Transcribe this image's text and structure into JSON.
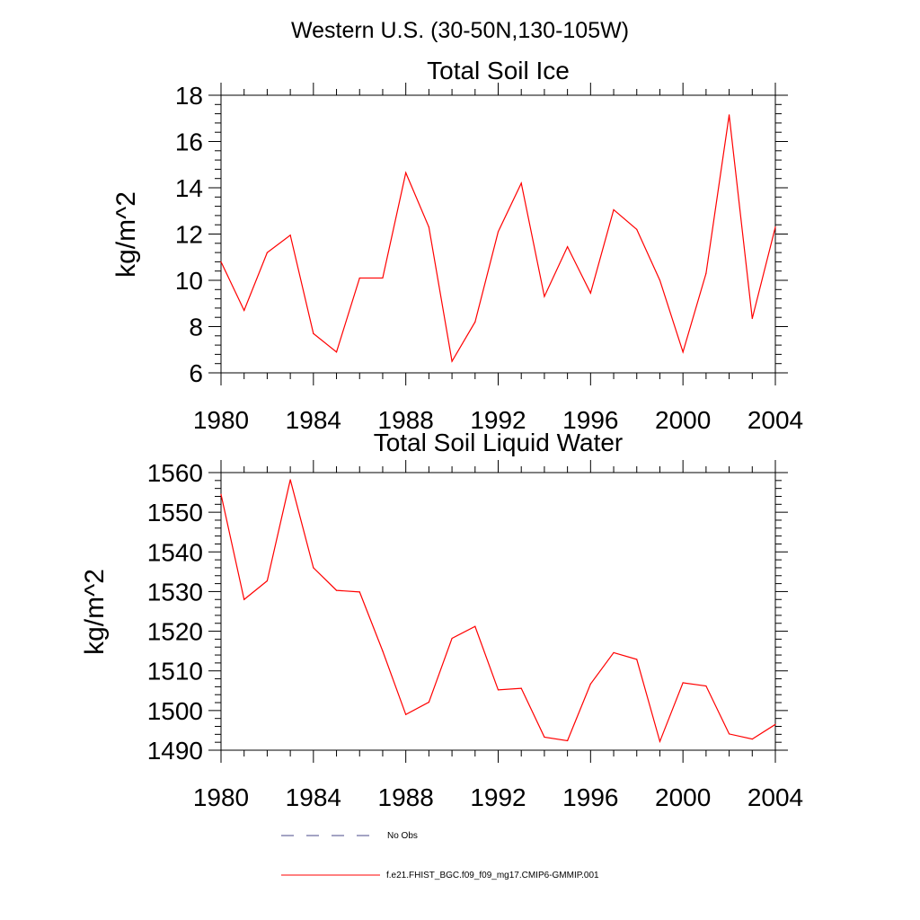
{
  "figure_title": "Western U.S. (30-50N,130-105W)",
  "chart_data": [
    {
      "type": "line",
      "title": "Total Soil Ice",
      "xlabel": "",
      "ylabel": "kg/m^2",
      "xlim": [
        1980,
        2004
      ],
      "ylim": [
        6,
        18
      ],
      "x_ticks": [
        1980,
        1984,
        1988,
        1992,
        1996,
        2000,
        2004
      ],
      "y_ticks": [
        6,
        8,
        10,
        12,
        14,
        16,
        18
      ],
      "grid": false,
      "x": [
        1980,
        1981,
        1982,
        1983,
        1984,
        1985,
        1986,
        1987,
        1988,
        1989,
        1990,
        1991,
        1992,
        1993,
        1994,
        1995,
        1996,
        1997,
        1998,
        1999,
        2000,
        2001,
        2002,
        2003,
        2004
      ],
      "series": [
        {
          "name": "f.e21.FHIST_BGC.f09_f09_mg17.CMIP6-GMMIP.001",
          "color": "#ff0000",
          "values": [
            10.8,
            8.7,
            11.2,
            11.95,
            7.7,
            6.9,
            10.1,
            10.1,
            14.65,
            12.3,
            6.5,
            8.2,
            12.1,
            14.2,
            9.3,
            11.45,
            9.45,
            13.05,
            12.2,
            10.0,
            6.9,
            10.3,
            17.15,
            8.35,
            12.3
          ]
        }
      ]
    },
    {
      "type": "line",
      "title": "Total Soil Liquid Water",
      "xlabel": "",
      "ylabel": "kg/m^2",
      "xlim": [
        1980,
        2004
      ],
      "ylim": [
        1490,
        1560
      ],
      "x_ticks": [
        1980,
        1984,
        1988,
        1992,
        1996,
        2000,
        2004
      ],
      "y_ticks": [
        1490,
        1500,
        1510,
        1520,
        1530,
        1540,
        1550,
        1560
      ],
      "grid": false,
      "x": [
        1980,
        1981,
        1982,
        1983,
        1984,
        1985,
        1986,
        1987,
        1988,
        1989,
        1990,
        1991,
        1992,
        1993,
        1994,
        1995,
        1996,
        1997,
        1998,
        1999,
        2000,
        2001,
        2002,
        2003,
        2004
      ],
      "series": [
        {
          "name": "f.e21.FHIST_BGC.f09_f09_mg17.CMIP6-GMMIP.001",
          "color": "#ff0000",
          "values": [
            1554.5,
            1528.0,
            1532.7,
            1558.2,
            1536.0,
            1530.3,
            1529.9,
            1515.0,
            1499.0,
            1502.1,
            1518.2,
            1521.2,
            1505.2,
            1505.6,
            1493.3,
            1492.4,
            1506.7,
            1514.6,
            1512.9,
            1492.2,
            1507.0,
            1506.2,
            1494.1,
            1492.8,
            1496.5
          ]
        }
      ]
    }
  ],
  "legend": {
    "placement": "bottom",
    "items": [
      {
        "label": "No Obs",
        "style": "dashed",
        "color": "#4a4a8a"
      },
      {
        "label": "f.e21.FHIST_BGC.f09_f09_mg17.CMIP6-GMMIP.001",
        "style": "solid",
        "color": "#ff0000"
      }
    ]
  }
}
